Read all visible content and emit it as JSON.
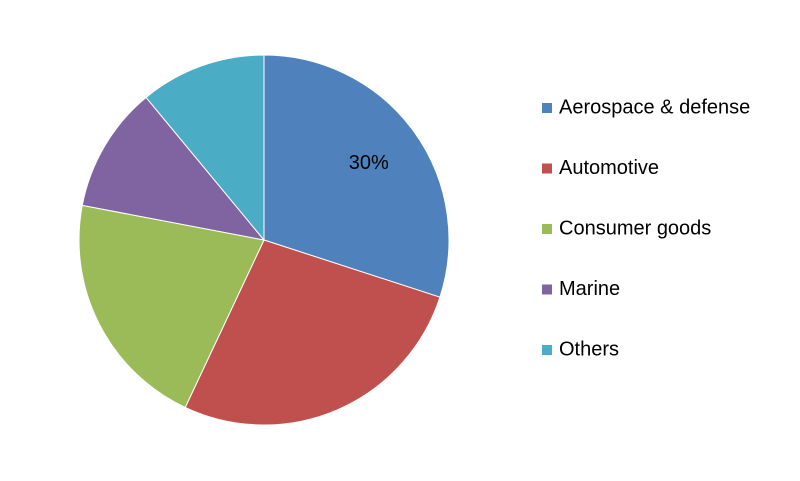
{
  "chart_data": {
    "type": "pie",
    "categories": [
      "Aerospace & defense",
      "Automotive",
      "Consumer goods",
      "Marine",
      "Others"
    ],
    "values": [
      30,
      27,
      21,
      11,
      11
    ],
    "value_labels": [
      "30%",
      null,
      null,
      null,
      null
    ],
    "colors": [
      "#4f81bd",
      "#c0504d",
      "#9bbb59",
      "#8064a2",
      "#4bacc6"
    ],
    "legend": "right"
  }
}
